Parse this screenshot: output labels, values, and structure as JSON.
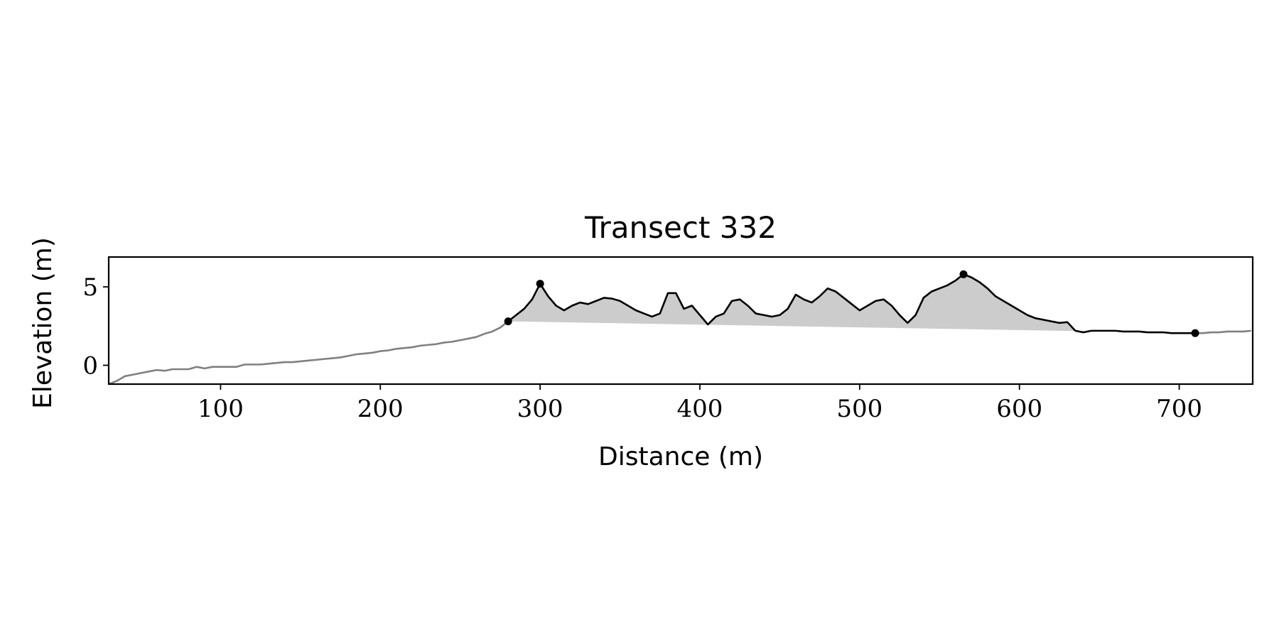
{
  "chart_data": {
    "type": "line",
    "title": "Transect 332",
    "xlabel": "Distance (m)",
    "ylabel": "Elevation (m)",
    "xlim": [
      30,
      746
    ],
    "ylim": [
      -1.2,
      6.9
    ],
    "xticks": [
      100,
      200,
      300,
      400,
      500,
      600,
      700
    ],
    "yticks": [
      0,
      5
    ],
    "grid": false,
    "fill_color": "#cccccc",
    "series": [
      {
        "color": "#808080",
        "x": [
          30,
          35,
          40,
          45,
          50,
          55,
          60,
          65,
          70,
          75,
          80,
          85,
          90,
          95,
          100,
          105,
          110,
          115,
          120,
          125,
          130,
          135,
          140,
          145,
          150,
          155,
          160,
          165,
          170,
          175,
          180,
          185,
          190,
          195,
          200,
          205,
          210,
          215,
          220,
          225,
          230,
          235,
          240,
          245,
          250,
          255,
          260,
          265,
          270,
          275,
          280
        ],
        "values": [
          -1.2,
          -1.0,
          -0.7,
          -0.6,
          -0.5,
          -0.4,
          -0.3,
          -0.35,
          -0.25,
          -0.25,
          -0.25,
          -0.1,
          -0.2,
          -0.1,
          -0.1,
          -0.1,
          -0.1,
          0.05,
          0.05,
          0.05,
          0.1,
          0.15,
          0.2,
          0.2,
          0.25,
          0.3,
          0.35,
          0.4,
          0.45,
          0.5,
          0.6,
          0.7,
          0.75,
          0.8,
          0.9,
          0.95,
          1.05,
          1.1,
          1.15,
          1.25,
          1.3,
          1.35,
          1.45,
          1.5,
          1.6,
          1.7,
          1.8,
          2.0,
          2.15,
          2.4,
          2.8
        ]
      },
      {
        "color": "#000000",
        "x": [
          280,
          285,
          290,
          295,
          300,
          305,
          310,
          315,
          320,
          325,
          330,
          335,
          340,
          345,
          350,
          355,
          360,
          365,
          370,
          375,
          380,
          385,
          390,
          395,
          400,
          405,
          410,
          415,
          420,
          425,
          430,
          435,
          440,
          445,
          450,
          455,
          460,
          465,
          470,
          475,
          480,
          485,
          490,
          495,
          500,
          505,
          510,
          515,
          520,
          525,
          530,
          535,
          540,
          545,
          550,
          555,
          560,
          565,
          570,
          575,
          580,
          585,
          590,
          595,
          600,
          605,
          610,
          615,
          620,
          625,
          630,
          635,
          640,
          645,
          650,
          655,
          660,
          665,
          670,
          675,
          680,
          685,
          690,
          695,
          700,
          705,
          710
        ],
        "values": [
          2.8,
          3.2,
          3.6,
          4.2,
          5.2,
          4.4,
          3.8,
          3.5,
          3.8,
          4.0,
          3.9,
          4.1,
          4.3,
          4.25,
          4.1,
          3.8,
          3.5,
          3.3,
          3.1,
          3.3,
          4.6,
          4.6,
          3.6,
          3.8,
          3.2,
          2.6,
          3.1,
          3.3,
          4.1,
          4.2,
          3.8,
          3.3,
          3.2,
          3.1,
          3.2,
          3.6,
          4.5,
          4.2,
          4.0,
          4.4,
          4.9,
          4.7,
          4.3,
          3.9,
          3.5,
          3.8,
          4.1,
          4.2,
          3.8,
          3.2,
          2.7,
          3.2,
          4.3,
          4.7,
          4.9,
          5.1,
          5.4,
          5.8,
          5.6,
          5.3,
          4.9,
          4.4,
          4.1,
          3.8,
          3.5,
          3.2,
          3.0,
          2.9,
          2.8,
          2.7,
          2.75,
          2.2,
          2.1,
          2.2,
          2.2,
          2.2,
          2.2,
          2.15,
          2.15,
          2.15,
          2.1,
          2.1,
          2.1,
          2.05,
          2.05,
          2.05,
          2.05
        ]
      },
      {
        "color": "#808080",
        "x": [
          710,
          715,
          720,
          725,
          730,
          735,
          740,
          745
        ],
        "values": [
          2.05,
          2.05,
          2.1,
          2.1,
          2.15,
          2.15,
          2.15,
          2.2
        ]
      }
    ],
    "points": {
      "color": "#000000",
      "x": [
        280,
        300,
        565,
        710
      ],
      "values": [
        2.8,
        5.2,
        5.8,
        2.05
      ]
    }
  }
}
